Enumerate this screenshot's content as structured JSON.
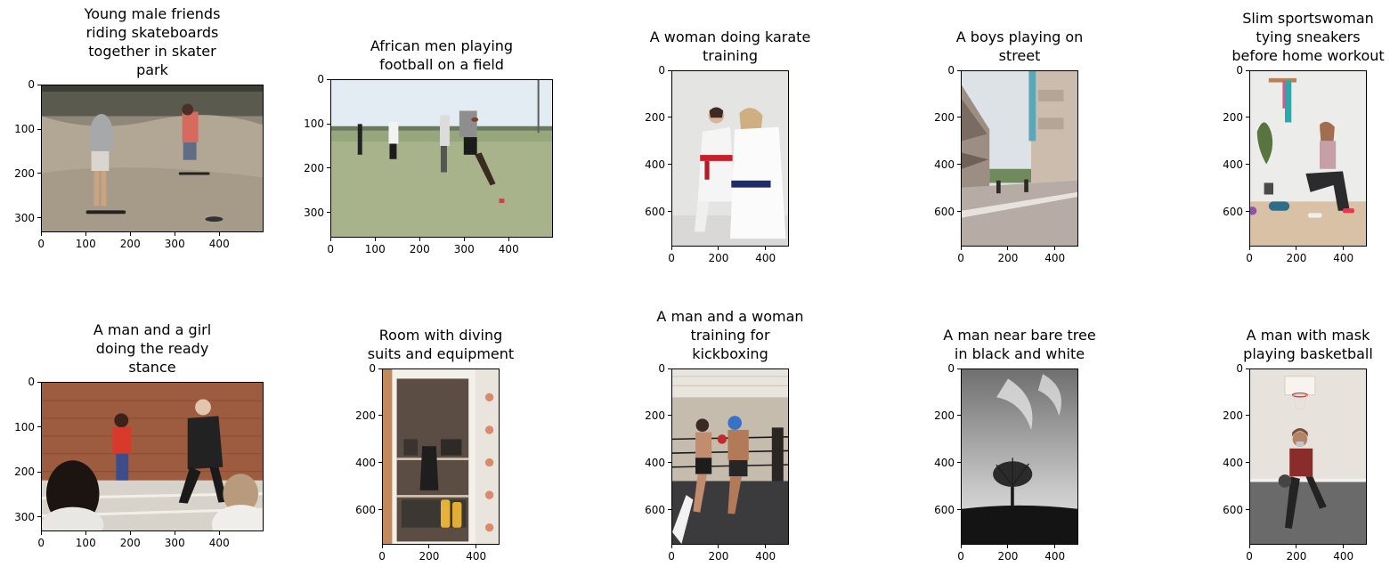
{
  "figure": {
    "panels": [
      {
        "title": "Young male friends\nriding skateboards\ntogether in skater\npark",
        "picture": "skateboard-scene",
        "image_size": [
          500,
          333
        ],
        "xticks": [
          0,
          100,
          200,
          300,
          400
        ],
        "yticks": [
          0,
          100,
          200,
          300
        ]
      },
      {
        "title": "African men playing\nfootball on a field",
        "picture": "football-scene",
        "image_size": [
          500,
          357
        ],
        "xticks": [
          0,
          100,
          200,
          300,
          400
        ],
        "yticks": [
          0,
          100,
          200,
          300
        ]
      },
      {
        "title": "A woman doing karate\ntraining",
        "picture": "karate-scene",
        "image_size": [
          500,
          750
        ],
        "xticks": [
          0,
          200,
          400
        ],
        "yticks": [
          0,
          200,
          400,
          600
        ]
      },
      {
        "title": "A boys playing on\nstreet",
        "picture": "street-scene",
        "image_size": [
          500,
          750
        ],
        "xticks": [
          0,
          200,
          400
        ],
        "yticks": [
          0,
          200,
          400,
          600
        ]
      },
      {
        "title": "Slim sportswoman\ntying sneakers\nbefore home workout",
        "picture": "workout-scene",
        "image_size": [
          500,
          750
        ],
        "xticks": [
          0,
          200,
          400
        ],
        "yticks": [
          0,
          200,
          400,
          600
        ]
      },
      {
        "title": "A man and a girl\ndoing the ready\nstance",
        "picture": "dojo-scene",
        "image_size": [
          500,
          333
        ],
        "xticks": [
          0,
          100,
          200,
          300,
          400
        ],
        "yticks": [
          0,
          100,
          200,
          300
        ]
      },
      {
        "title": "Room with diving\nsuits and equipment",
        "picture": "diving-room-scene",
        "image_size": [
          500,
          750
        ],
        "xticks": [
          0,
          200,
          400
        ],
        "yticks": [
          0,
          200,
          400,
          600
        ]
      },
      {
        "title": "A man and a woman\ntraining for\nkickboxing",
        "picture": "kickboxing-scene",
        "image_size": [
          500,
          750
        ],
        "xticks": [
          0,
          200,
          400
        ],
        "yticks": [
          0,
          200,
          400,
          600
        ]
      },
      {
        "title": "A man near bare tree\nin black and white",
        "picture": "bare-tree-scene",
        "image_size": [
          500,
          750
        ],
        "xticks": [
          0,
          200,
          400
        ],
        "yticks": [
          0,
          200,
          400,
          600
        ]
      },
      {
        "title": "A man with mask\nplaying basketball",
        "picture": "basketball-scene",
        "image_size": [
          500,
          750
        ],
        "xticks": [
          0,
          200,
          400
        ],
        "yticks": [
          0,
          200,
          400,
          600
        ]
      }
    ]
  }
}
